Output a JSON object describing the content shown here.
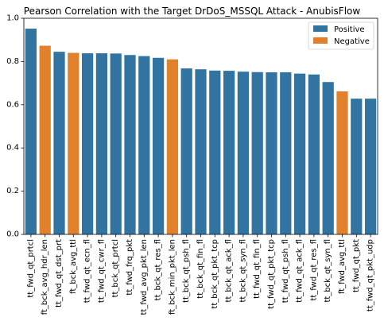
{
  "chart_data": {
    "type": "bar",
    "title": "Pearson Correlation with the Target DrDoS_MSSQL Attack - AnubisFlow",
    "xlabel": "",
    "ylabel": "",
    "ylim": [
      0,
      1.0
    ],
    "yticks": [
      "0.0",
      "0.2",
      "0.4",
      "0.6",
      "0.8",
      "1.0"
    ],
    "grid": false,
    "legend_position": "top-right",
    "legend": [
      {
        "label": "Positive",
        "color": "#3274a1"
      },
      {
        "label": "Negative",
        "color": "#e1812c"
      }
    ],
    "categories": [
      "tt_fwd_qt_prtcl",
      "ft_bck_avg_hdr_len",
      "tt_fwd_qt_dst_prt",
      "ft_bck_avg_ttl",
      "tt_fwd_qt_ecn_fl",
      "tt_fwd_qt_cwr_fl",
      "tt_bck_qt_prtcl",
      "tt_fwd_frq_pkt",
      "tt_fwd_avg_pkt_len",
      "tt_bck_qt_res_fl",
      "ft_bck_min_pkt_len",
      "tt_bck_qt_psh_fl",
      "tt_bck_qt_fin_fl",
      "tt_bck_qt_pkt_tcp",
      "tt_bck_qt_ack_fl",
      "tt_bck_qt_syn_fl",
      "tt_fwd_qt_fin_fl",
      "tt_fwd_qt_pkt_tcp",
      "tt_fwd_qt_psh_fl",
      "tt_fwd_qt_ack_fl",
      "tt_fwd_qt_res_fl",
      "tt_bck_qt_syn_fl",
      "ft_fwd_avg_ttl",
      "tt_fwd_qt_pkt",
      "tt_fwd_qt_pkt_udp"
    ],
    "values": [
      0.952,
      0.873,
      0.845,
      0.84,
      0.838,
      0.838,
      0.837,
      0.83,
      0.825,
      0.817,
      0.81,
      0.768,
      0.764,
      0.758,
      0.757,
      0.753,
      0.751,
      0.75,
      0.75,
      0.744,
      0.74,
      0.705,
      0.662,
      0.628,
      0.628
    ],
    "signs": [
      "Positive",
      "Negative",
      "Positive",
      "Negative",
      "Positive",
      "Positive",
      "Positive",
      "Positive",
      "Positive",
      "Positive",
      "Negative",
      "Positive",
      "Positive",
      "Positive",
      "Positive",
      "Positive",
      "Positive",
      "Positive",
      "Positive",
      "Positive",
      "Positive",
      "Positive",
      "Negative",
      "Positive",
      "Positive"
    ]
  }
}
